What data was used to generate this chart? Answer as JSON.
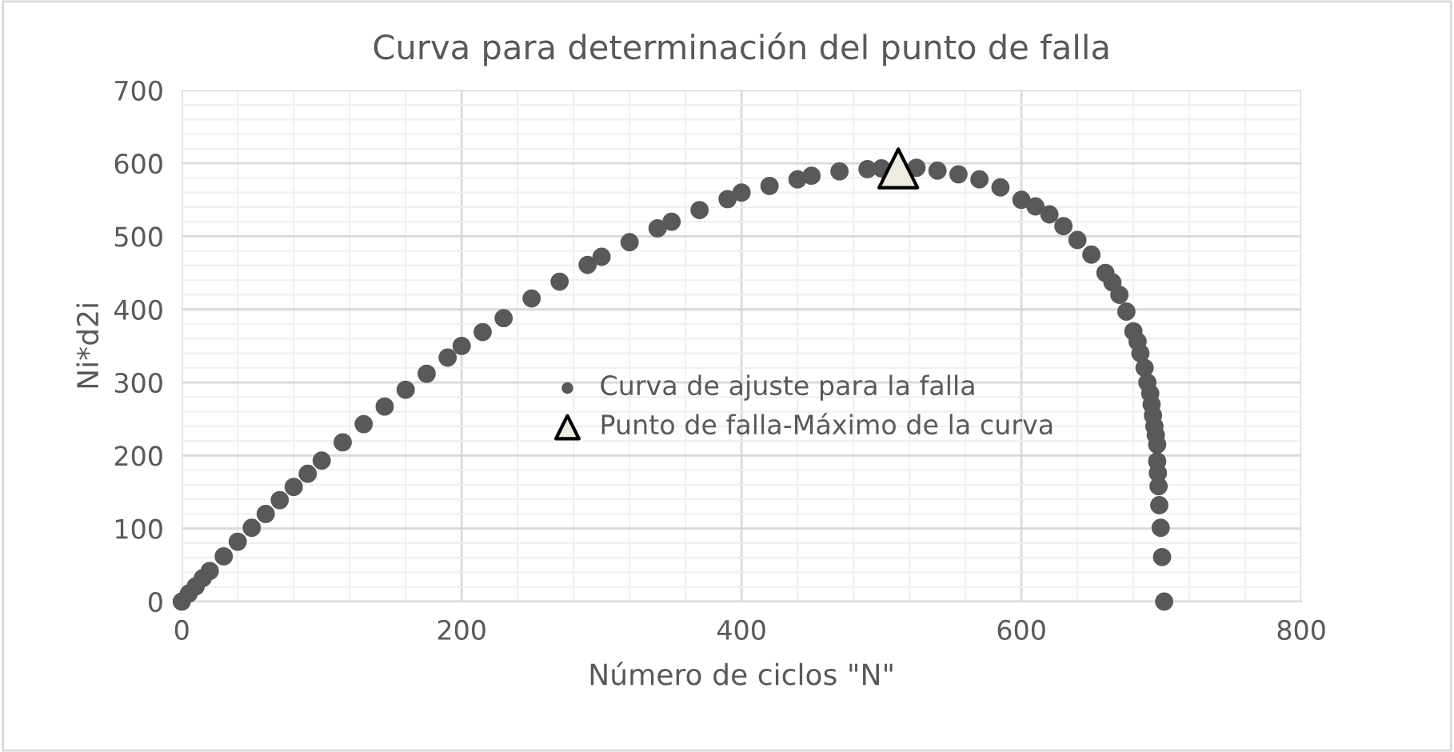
{
  "chart_data": {
    "type": "scatter",
    "title": "Curva para determinación del punto de falla",
    "xlabel": "Número de ciclos \"N\"",
    "ylabel": "Ni*d2i",
    "xlim": [
      0,
      800
    ],
    "xticks": [
      0,
      200,
      400,
      600,
      800
    ],
    "ylim": [
      0,
      700
    ],
    "yticks": [
      0,
      100,
      200,
      300,
      400,
      500,
      600,
      700
    ],
    "grid": true,
    "legend": "center",
    "series": [
      {
        "name": "Curva de ajuste para la falla",
        "color": "#595959",
        "marker": "circle",
        "x": [
          0,
          5,
          10,
          15,
          20,
          30,
          40,
          50,
          60,
          70,
          80,
          90,
          100,
          115,
          130,
          145,
          160,
          175,
          190,
          200,
          215,
          230,
          250,
          270,
          290,
          300,
          320,
          340,
          350,
          370,
          390,
          400,
          420,
          440,
          450,
          470,
          490,
          500,
          525,
          540,
          555,
          570,
          585,
          600,
          610,
          620,
          630,
          640,
          650,
          660,
          665,
          670,
          675,
          680,
          683,
          685,
          688,
          690,
          692,
          693,
          694,
          695,
          696,
          697,
          697,
          697.5,
          698,
          698.5,
          699.5,
          700.5,
          702
        ],
        "values": [
          0,
          11,
          21,
          32,
          42,
          62,
          82,
          101,
          120,
          139,
          157,
          175,
          193,
          218,
          243,
          267,
          290,
          312,
          334,
          350,
          369,
          388,
          415,
          438,
          461,
          472,
          492,
          511,
          520,
          536,
          551,
          560,
          569,
          578,
          583,
          589,
          592,
          593,
          594,
          590,
          585,
          578,
          567,
          550,
          541,
          530,
          514,
          495,
          475,
          450,
          437,
          420,
          397,
          370,
          356,
          340,
          320,
          300,
          285,
          270,
          255,
          240,
          228,
          215,
          192,
          176,
          158,
          132,
          101,
          61,
          0
        ]
      },
      {
        "name": "Punto de falla-Máximo de la curva",
        "color": "#eeece1",
        "marker": "triangle",
        "x": [
          512
        ],
        "values": [
          593
        ]
      }
    ]
  }
}
